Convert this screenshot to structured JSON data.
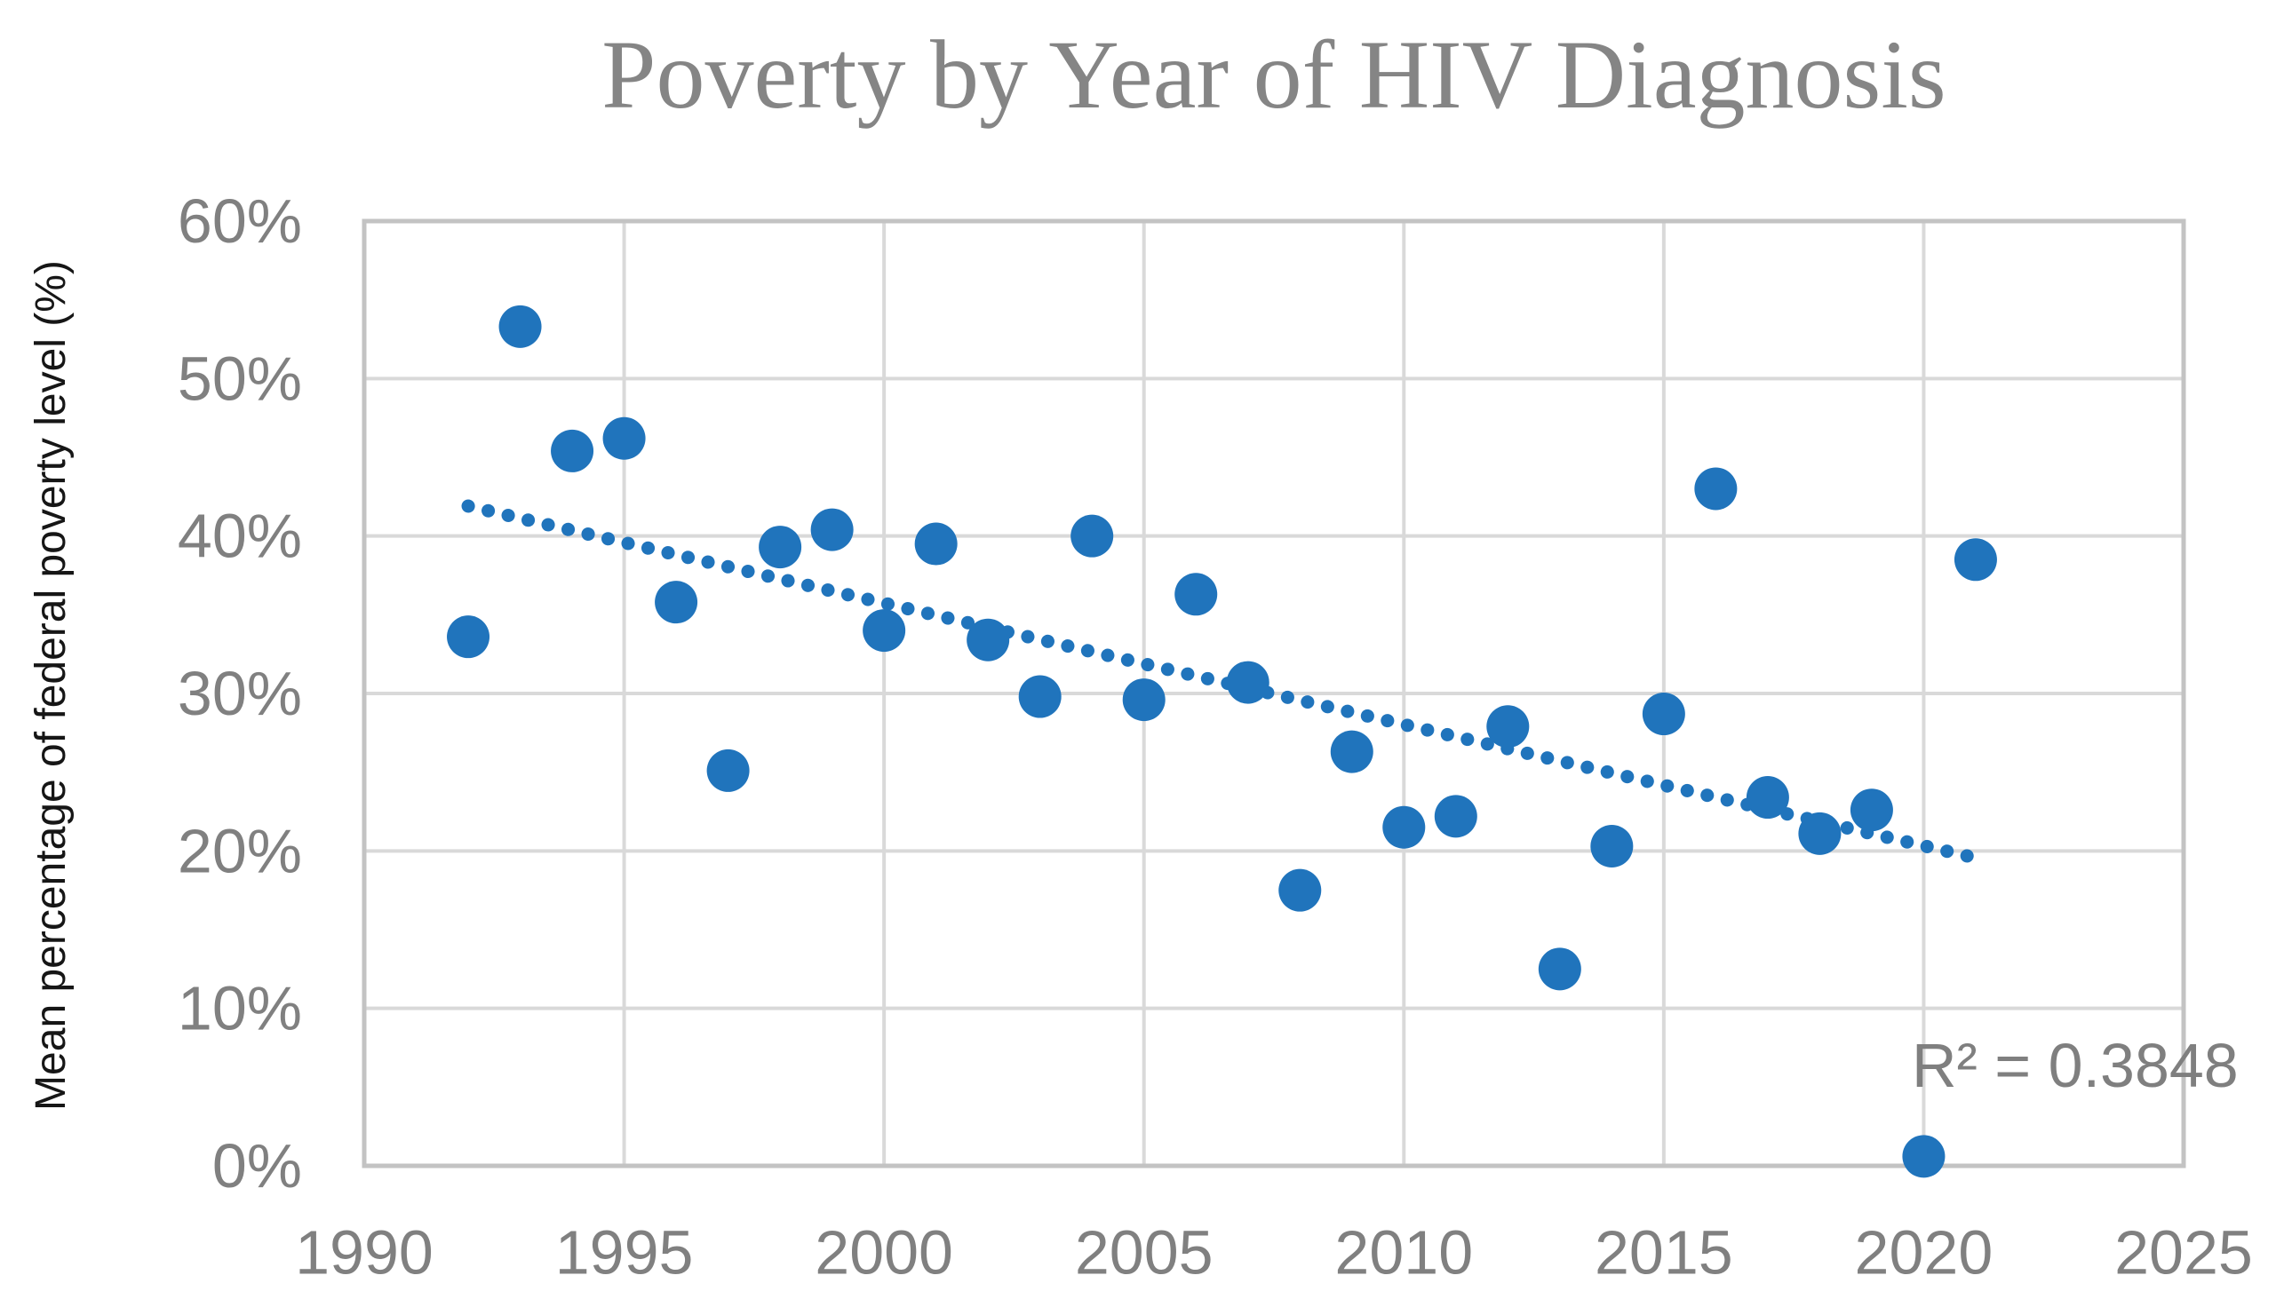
{
  "title": "Poverty by Year of HIV Diagnosis",
  "y_axis_title": "Mean percentage of federal poverty level (%)",
  "r_squared_label": "R² = 0.3848",
  "colors": {
    "background": "#FFFFFF",
    "point": "#2074BC",
    "trendline": "#2074BC",
    "gridline": "#D9D9D9",
    "plot_border": "#C3C3C3",
    "tick_text": "#808080",
    "title_text": "#858585",
    "axis_title_text": "#161616",
    "r2_text": "#7F7F7F"
  },
  "chart_data": {
    "type": "scatter",
    "title": "Poverty by Year of HIV Diagnosis",
    "xlabel": "",
    "ylabel": "Mean percentage of federal poverty level (%)",
    "xlim": [
      1990,
      2025
    ],
    "ylim": [
      0,
      60
    ],
    "grid": true,
    "legend": "none",
    "x_tick_labels": [
      "1990",
      "1995",
      "2000",
      "2005",
      "2010",
      "2015",
      "2020",
      "2025"
    ],
    "x_tick_values": [
      1990,
      1995,
      2000,
      2005,
      2010,
      2015,
      2020,
      2025
    ],
    "y_tick_labels": [
      "0%",
      "10%",
      "20%",
      "30%",
      "40%",
      "50%",
      "60%"
    ],
    "y_tick_values": [
      0,
      10,
      20,
      30,
      40,
      50,
      60
    ],
    "points": [
      {
        "year": 1992,
        "pct": 33.6
      },
      {
        "year": 1993,
        "pct": 53.3
      },
      {
        "year": 1994,
        "pct": 45.4
      },
      {
        "year": 1995,
        "pct": 46.2
      },
      {
        "year": 1996,
        "pct": 35.8
      },
      {
        "year": 1997,
        "pct": 25.1
      },
      {
        "year": 1998,
        "pct": 39.3
      },
      {
        "year": 1999,
        "pct": 40.4
      },
      {
        "year": 2000,
        "pct": 34.0
      },
      {
        "year": 2001,
        "pct": 39.5
      },
      {
        "year": 2002,
        "pct": 33.4
      },
      {
        "year": 2003,
        "pct": 29.8
      },
      {
        "year": 2004,
        "pct": 40.0
      },
      {
        "year": 2005,
        "pct": 29.6
      },
      {
        "year": 2006,
        "pct": 36.3
      },
      {
        "year": 2007,
        "pct": 30.7
      },
      {
        "year": 2008,
        "pct": 17.5
      },
      {
        "year": 2009,
        "pct": 26.3
      },
      {
        "year": 2010,
        "pct": 21.5
      },
      {
        "year": 2011,
        "pct": 22.2
      },
      {
        "year": 2012,
        "pct": 27.9
      },
      {
        "year": 2013,
        "pct": 12.5
      },
      {
        "year": 2014,
        "pct": 20.3
      },
      {
        "year": 2015,
        "pct": 28.7
      },
      {
        "year": 2016,
        "pct": 43.0
      },
      {
        "year": 2017,
        "pct": 23.4
      },
      {
        "year": 2018,
        "pct": 21.1
      },
      {
        "year": 2019,
        "pct": 22.6
      },
      {
        "year": 2020,
        "pct": 0.6
      },
      {
        "year": 2021,
        "pct": 38.5
      }
    ],
    "trendline": {
      "style": "dotted",
      "x1": 1992.0,
      "y1": 41.9,
      "x2": 2021.2,
      "y2": 19.4,
      "r_squared": 0.3848
    },
    "annotation": "R² = 0.3848"
  }
}
